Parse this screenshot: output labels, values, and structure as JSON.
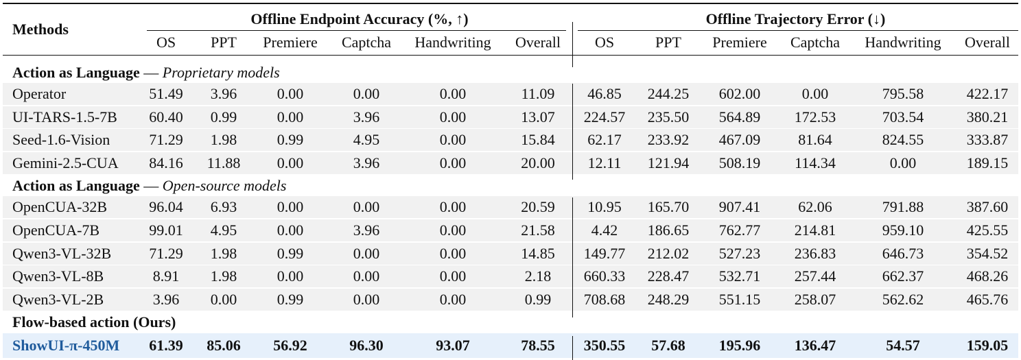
{
  "header": {
    "methods_label": "Methods",
    "group1_label": "Offline Endpoint Accuracy (%, ↑)",
    "group2_label": "Offline Trajectory Error (↓)",
    "columns": [
      "OS",
      "PPT",
      "Premiere",
      "Captcha",
      "Handwriting",
      "Overall",
      "OS",
      "PPT",
      "Premiere",
      "Captcha",
      "Handwriting",
      "Overall"
    ]
  },
  "sections": [
    {
      "title_bold": "Action as Language",
      "title_dash": " — ",
      "title_italic": "Proprietary models",
      "rows": [
        {
          "method": "Operator",
          "values": [
            "51.49",
            "3.96",
            "0.00",
            "0.00",
            "0.00",
            "11.09",
            "46.85",
            "244.25",
            "602.00",
            "0.00",
            "795.58",
            "422.17"
          ]
        },
        {
          "method": "UI-TARS-1.5-7B",
          "values": [
            "60.40",
            "0.99",
            "0.00",
            "3.96",
            "0.00",
            "13.07",
            "224.57",
            "235.50",
            "564.89",
            "172.53",
            "703.54",
            "380.21"
          ]
        },
        {
          "method": "Seed-1.6-Vision",
          "values": [
            "71.29",
            "1.98",
            "0.99",
            "4.95",
            "0.00",
            "15.84",
            "62.17",
            "233.92",
            "467.09",
            "81.64",
            "824.55",
            "333.87"
          ]
        },
        {
          "method": "Gemini-2.5-CUA",
          "values": [
            "84.16",
            "11.88",
            "0.00",
            "3.96",
            "0.00",
            "20.00",
            "12.11",
            "121.94",
            "508.19",
            "114.34",
            "0.00",
            "189.15"
          ]
        }
      ]
    },
    {
      "title_bold": "Action as Language",
      "title_dash": " — ",
      "title_italic": "Open-source models",
      "rows": [
        {
          "method": "OpenCUA-32B",
          "values": [
            "96.04",
            "6.93",
            "0.00",
            "0.00",
            "0.00",
            "20.59",
            "10.95",
            "165.70",
            "907.41",
            "62.06",
            "791.88",
            "387.60"
          ]
        },
        {
          "method": "OpenCUA-7B",
          "values": [
            "99.01",
            "4.95",
            "0.00",
            "3.96",
            "0.00",
            "21.58",
            "4.42",
            "186.65",
            "762.77",
            "214.81",
            "959.10",
            "425.55"
          ]
        },
        {
          "method": "Qwen3-VL-32B",
          "values": [
            "71.29",
            "1.98",
            "0.99",
            "0.00",
            "0.00",
            "14.85",
            "149.77",
            "212.02",
            "527.23",
            "236.83",
            "646.73",
            "354.52"
          ]
        },
        {
          "method": "Qwen3-VL-8B",
          "values": [
            "8.91",
            "1.98",
            "0.00",
            "0.00",
            "0.00",
            "2.18",
            "660.33",
            "228.47",
            "532.71",
            "257.44",
            "662.37",
            "468.26"
          ]
        },
        {
          "method": "Qwen3-VL-2B",
          "values": [
            "3.96",
            "0.00",
            "0.99",
            "0.00",
            "0.00",
            "0.99",
            "708.68",
            "248.29",
            "551.15",
            "258.07",
            "562.62",
            "465.76"
          ]
        }
      ]
    },
    {
      "title_bold": "Flow-based action (Ours)",
      "title_dash": "",
      "title_italic": "",
      "rows": [
        {
          "method": "ShowUI-π-450M",
          "values": [
            "61.39",
            "85.06",
            "56.92",
            "96.30",
            "93.07",
            "78.55",
            "350.55",
            "57.68",
            "195.96",
            "136.47",
            "54.57",
            "159.05"
          ],
          "highlight": true
        }
      ]
    }
  ]
}
